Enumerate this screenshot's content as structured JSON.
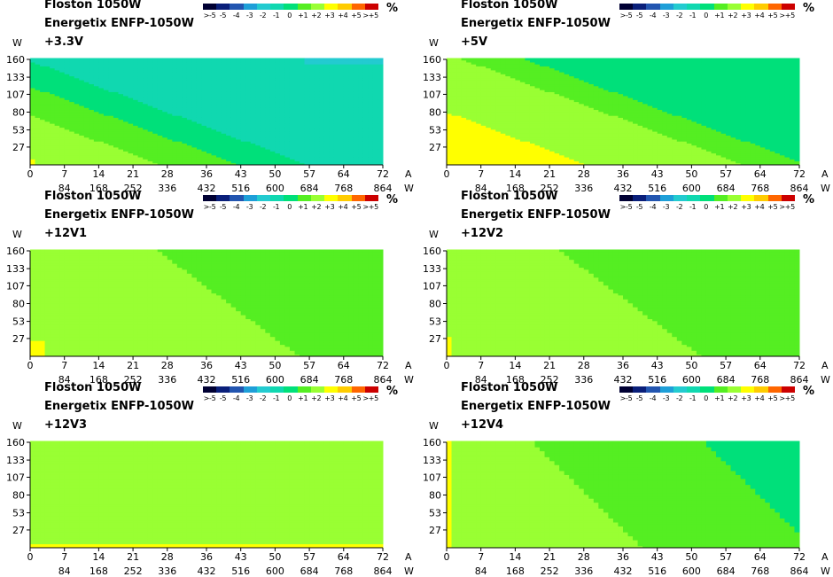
{
  "legend": {
    "labels": [
      ">-5",
      "-5",
      "-4",
      "-3",
      "-2",
      "-1",
      "0",
      "+1",
      "+2",
      "+3",
      "+4",
      "+5",
      ">+5"
    ],
    "colors": [
      "#000033",
      "#0a1f7a",
      "#2255b0",
      "#1e9fd8",
      "#23cbd0",
      "#10d8b0",
      "#00e07a",
      "#55ee22",
      "#99ff33",
      "#ffff00",
      "#ffcc00",
      "#ff6600",
      "#cc0000"
    ],
    "unit": "%"
  },
  "panels": [
    {
      "brand": "Floston 1050W",
      "model": "Energetix ENFP-1050W",
      "rail": "+3.3V"
    },
    {
      "brand": "Floston 1050W",
      "model": "Energetix ENFP-1050W",
      "rail": "+5V"
    },
    {
      "brand": "Floston 1050W",
      "model": "Energetix ENFP-1050W",
      "rail": "+12V1"
    },
    {
      "brand": "Floston 1050W",
      "model": "Energetix ENFP-1050W",
      "rail": "+12V2"
    },
    {
      "brand": "Floston 1050W",
      "model": "Energetix ENFP-1050W",
      "rail": "+12V3"
    },
    {
      "brand": "Floston 1050W",
      "model": "Energetix ENFP-1050W",
      "rail": "+12V4"
    }
  ],
  "chart_data": {
    "type": "heatmap",
    "x_label_amps": "A",
    "x_label_watts": "W",
    "y_label": "W",
    "x_amp_ticks": [
      "0",
      "7",
      "14",
      "21",
      "28",
      "36",
      "43",
      "50",
      "57",
      "64",
      "72"
    ],
    "x_watt_ticks": [
      "84",
      "168",
      "252",
      "336",
      "432",
      "516",
      "600",
      "684",
      "768",
      "864"
    ],
    "y_ticks": [
      "160",
      "133",
      "107",
      "80",
      "53",
      "27"
    ],
    "x_range_amps": [
      0,
      72
    ],
    "y_range_watts": [
      0,
      160
    ],
    "max_total_watts": 1050,
    "levels": [
      ">-5",
      "-5",
      "-4",
      "-3",
      "-2",
      "-1",
      "0",
      "+1",
      "+2",
      "+3",
      "+4",
      "+5",
      ">+5"
    ],
    "maps": [
      {
        "rail": "+3.3V",
        "bands": [
          {
            "value": "+3",
            "region": "x + 0.11*y < 1.4"
          },
          {
            "value": "+2",
            "region": "x + 0.36*y < 27"
          },
          {
            "value": "+1",
            "region": "x + 0.36*y < 43"
          },
          {
            "value": "0",
            "region": "x + 0.36*y < 57"
          },
          {
            "value": "-1",
            "region": "remainder"
          },
          {
            "value": "-2",
            "region": "x 56-60, y 152-160"
          }
        ]
      },
      {
        "rail": "+5V",
        "bands": [
          {
            "value": "+3",
            "region": "x + 0.36*y < 29 (below y 85)"
          },
          {
            "value": "+2",
            "region": "x + 0.36*y < 61"
          },
          {
            "value": "+1",
            "region": "x + 0.36*y < 74"
          },
          {
            "value": "0",
            "region": "remainder"
          }
        ]
      },
      {
        "rail": "+12V1",
        "bands": [
          {
            "value": "+3",
            "region": "corner x < 3, y < 25"
          },
          {
            "value": "+2",
            "region": "x + 0.18*y < 55"
          },
          {
            "value": "+1",
            "region": "remainder"
          }
        ]
      },
      {
        "rail": "+12V2",
        "bands": [
          {
            "value": "+3",
            "region": "corner x < 1, y < 30"
          },
          {
            "value": "+2",
            "region": "x + 0.18*y < 52"
          },
          {
            "value": "+1",
            "region": "remainder"
          }
        ]
      },
      {
        "rail": "+12V3",
        "bands": [
          {
            "value": "+3",
            "region": "edge y < 6"
          },
          {
            "value": "+2",
            "region": "remainder"
          }
        ]
      },
      {
        "rail": "+12V4",
        "bands": [
          {
            "value": "+3",
            "region": "edge x < 1"
          },
          {
            "value": "+2",
            "region": "x + 0.14*y < 40"
          },
          {
            "value": "+1",
            "region": "x + 0.14*y < 75"
          },
          {
            "value": "0",
            "region": "remainder (upper-right corner)"
          }
        ]
      }
    ]
  }
}
